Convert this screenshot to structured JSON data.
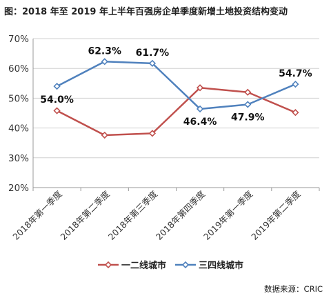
{
  "title": "图：2018 年至 2019 年上半年百强房企单季度新增土地投资结构变动",
  "source": "数据来源：CRIC",
  "colors": {
    "tier12": "#c0504d",
    "tier34": "#4f81bd",
    "grid": "#d0d0d0",
    "axis": "#999999"
  },
  "chart_data": {
    "type": "line",
    "categories": [
      "2018年第一季度",
      "2018年第二季度",
      "2018年第三季度",
      "2018年第四季度",
      "2019年第一季度",
      "2019年第二季度"
    ],
    "ylim": [
      20,
      70
    ],
    "yticks": [
      20,
      30,
      40,
      50,
      60,
      70
    ],
    "ytick_labels": [
      "20%",
      "30%",
      "40%",
      "50%",
      "60%",
      "70%"
    ],
    "grid": true,
    "legend_position": "bottom",
    "series": [
      {
        "name": "一二线城市",
        "color": "#c0504d",
        "values": [
          45.8,
          37.6,
          38.2,
          53.5,
          52.0,
          45.2
        ],
        "data_labels": []
      },
      {
        "name": "三四线城市",
        "color": "#4f81bd",
        "values": [
          54.0,
          62.3,
          61.7,
          46.4,
          47.9,
          54.7
        ],
        "data_labels": [
          "54.0%",
          "62.3%",
          "61.7%",
          "46.4%",
          "47.9%",
          "54.7%"
        ]
      }
    ]
  }
}
